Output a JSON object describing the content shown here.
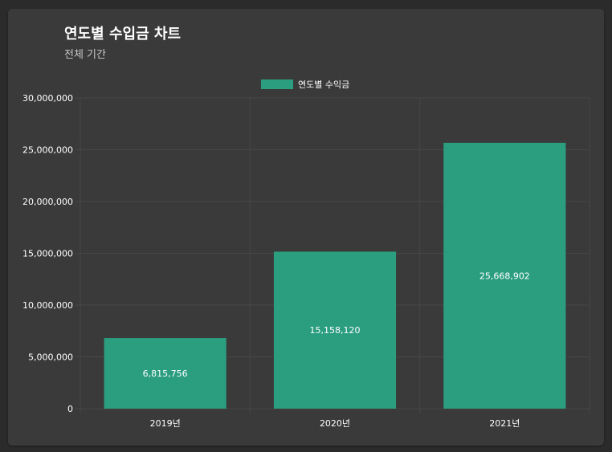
{
  "header": {
    "title": "연도별 수입금 차트",
    "subtitle": "전체 기간"
  },
  "colors": {
    "page_bg": "#2b2b2b",
    "card_bg": "#3a3a3a",
    "bar": "#2b9e80",
    "grid": "#474747",
    "axis_text": "#ffffff"
  },
  "chart_data": {
    "type": "bar",
    "title": "연도별 수입금 차트",
    "subtitle": "전체 기간",
    "categories": [
      "2019년",
      "2020년",
      "2021년"
    ],
    "series": [
      {
        "name": "연도별 수익금",
        "values": [
          6815756,
          15158120,
          25668902
        ]
      }
    ],
    "value_labels": [
      "6,815,756",
      "15,158,120",
      "25,668,902"
    ],
    "ylim": [
      0,
      30000000
    ],
    "yticks": [
      0,
      5000000,
      10000000,
      15000000,
      20000000,
      25000000,
      30000000
    ],
    "ytick_labels": [
      "0",
      "5,000,000",
      "10,000,000",
      "15,000,000",
      "20,000,000",
      "25,000,000",
      "30,000,000"
    ],
    "legend_position": "top-center",
    "grid": true
  }
}
